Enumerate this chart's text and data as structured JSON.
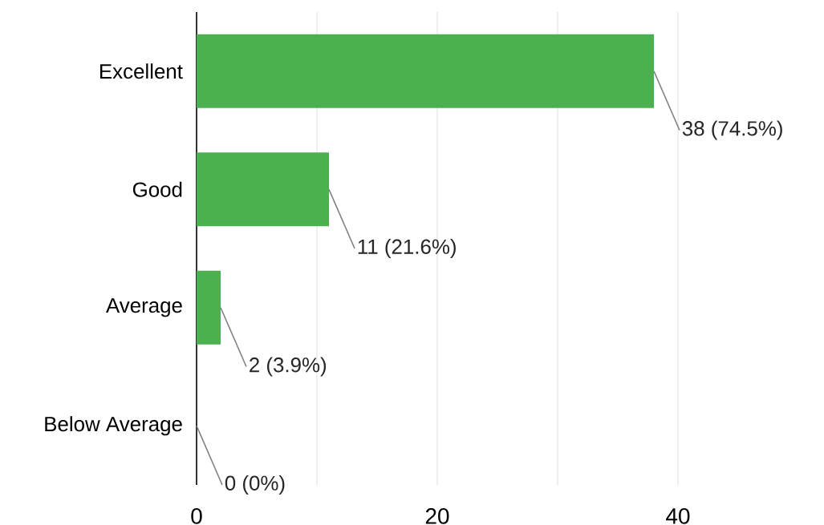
{
  "chart_data": {
    "type": "bar",
    "orientation": "horizontal",
    "categories": [
      "Excellent",
      "Good",
      "Average",
      "Below Average"
    ],
    "values": [
      38,
      11,
      2,
      0
    ],
    "color": "#4caf50",
    "value_labels": [
      "38 (74.5%)",
      "11 (21.6%)",
      "2 (3.9%)",
      "0 (0%)"
    ],
    "xlim": [
      0,
      40
    ],
    "xticks": [
      0,
      {
        "value": 10,
        "label": null
      },
      20,
      {
        "value": 30,
        "label": null
      },
      40
    ],
    "grid": "x"
  }
}
